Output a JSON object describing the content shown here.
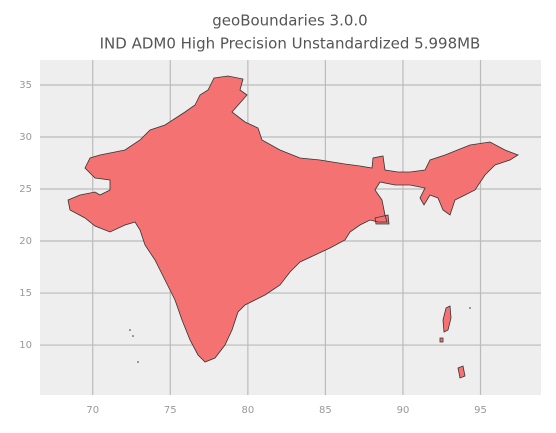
{
  "chart_data": {
    "type": "map",
    "title": "geoBoundaries 3.0.0",
    "subtitle": "IND ADM0 High Precision Unstandardized 5.998MB",
    "xlim": [
      66.6,
      98.9
    ],
    "ylim": [
      5.2,
      37.4
    ],
    "xticks": [
      70,
      75,
      80,
      85,
      90,
      95
    ],
    "yticks": [
      10,
      15,
      20,
      25,
      30,
      35
    ],
    "grid": true,
    "color": "#f47272"
  }
}
